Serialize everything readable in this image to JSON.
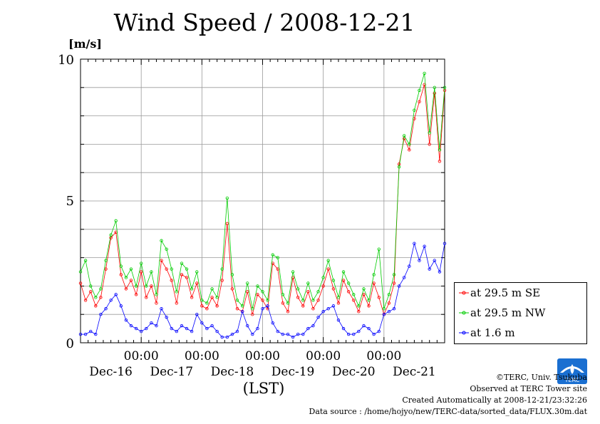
{
  "chart_data": {
    "type": "line",
    "title": "Wind Speed / 2008-12-21",
    "ylabel": "[m/s]",
    "xlabel": "(LST)",
    "ylim": [
      0,
      10
    ],
    "yticks": [
      "0",
      "5",
      "10"
    ],
    "xlim": [
      -1.0,
      5.0
    ],
    "xtick_times": [
      "00:00",
      "00:00",
      "00:00",
      "00:00",
      "00:00"
    ],
    "xtick_dates": [
      "Dec-16",
      "Dec-17",
      "Dec-18",
      "Dec-19",
      "Dec-20",
      "Dec-21"
    ],
    "grid": true,
    "legend_position": "bottom-right outside plot",
    "series": [
      {
        "name": "at 29.5 m SE",
        "color": "#ff0000",
        "x": [
          -1.0,
          -0.917,
          -0.833,
          -0.75,
          -0.667,
          -0.583,
          -0.5,
          -0.417,
          -0.333,
          -0.25,
          -0.167,
          -0.083,
          0.0,
          0.083,
          0.167,
          0.25,
          0.333,
          0.417,
          0.5,
          0.583,
          0.667,
          0.75,
          0.833,
          0.917,
          1.0,
          1.083,
          1.167,
          1.25,
          1.333,
          1.417,
          1.5,
          1.583,
          1.667,
          1.75,
          1.833,
          1.917,
          2.0,
          2.083,
          2.167,
          2.25,
          2.333,
          2.417,
          2.5,
          2.583,
          2.667,
          2.75,
          2.833,
          2.917,
          3.0,
          3.083,
          3.167,
          3.25,
          3.333,
          3.417,
          3.5,
          3.583,
          3.667,
          3.75,
          3.833,
          3.917,
          4.0,
          4.083,
          4.167,
          4.25,
          4.333,
          4.417,
          4.5,
          4.583,
          4.667,
          4.75,
          4.833,
          4.917,
          5.0
        ],
        "values": [
          2.1,
          1.5,
          1.8,
          1.3,
          1.6,
          2.6,
          3.7,
          3.9,
          2.4,
          1.9,
          2.2,
          1.7,
          2.5,
          1.6,
          2.0,
          1.4,
          2.9,
          2.6,
          2.2,
          1.4,
          2.4,
          2.3,
          1.6,
          2.1,
          1.3,
          1.2,
          1.6,
          1.3,
          2.2,
          4.2,
          1.9,
          1.2,
          1.1,
          1.8,
          1.0,
          1.7,
          1.5,
          1.2,
          2.8,
          2.6,
          1.4,
          1.1,
          2.3,
          1.6,
          1.3,
          1.8,
          1.2,
          1.5,
          2.0,
          2.6,
          1.9,
          1.4,
          2.2,
          1.8,
          1.5,
          1.1,
          1.7,
          1.3,
          2.1,
          1.6,
          1.0,
          1.4,
          2.1,
          6.3,
          7.2,
          6.8,
          7.9,
          8.5,
          9.1,
          7.0,
          8.8,
          6.4,
          8.9
        ]
      },
      {
        "name": "at 29.5 m NW",
        "color": "#00cc00",
        "x": [
          -1.0,
          -0.917,
          -0.833,
          -0.75,
          -0.667,
          -0.583,
          -0.5,
          -0.417,
          -0.333,
          -0.25,
          -0.167,
          -0.083,
          0.0,
          0.083,
          0.167,
          0.25,
          0.333,
          0.417,
          0.5,
          0.583,
          0.667,
          0.75,
          0.833,
          0.917,
          1.0,
          1.083,
          1.167,
          1.25,
          1.333,
          1.417,
          1.5,
          1.583,
          1.667,
          1.75,
          1.833,
          1.917,
          2.0,
          2.083,
          2.167,
          2.25,
          2.333,
          2.417,
          2.5,
          2.583,
          2.667,
          2.75,
          2.833,
          2.917,
          3.0,
          3.083,
          3.167,
          3.25,
          3.333,
          3.417,
          3.5,
          3.583,
          3.667,
          3.75,
          3.833,
          3.917,
          4.0,
          4.083,
          4.167,
          4.25,
          4.333,
          4.417,
          4.5,
          4.583,
          4.667,
          4.75,
          4.833,
          4.917,
          5.0
        ],
        "values": [
          2.5,
          2.9,
          2.0,
          1.6,
          1.9,
          2.9,
          3.8,
          4.3,
          2.7,
          2.3,
          2.6,
          2.0,
          2.8,
          2.0,
          2.5,
          1.7,
          3.6,
          3.3,
          2.6,
          1.8,
          2.8,
          2.6,
          1.9,
          2.5,
          1.5,
          1.4,
          1.9,
          1.6,
          2.6,
          5.1,
          2.4,
          1.5,
          1.3,
          2.1,
          1.2,
          2.0,
          1.8,
          1.5,
          3.1,
          3.0,
          1.7,
          1.4,
          2.5,
          1.9,
          1.5,
          2.1,
          1.5,
          1.8,
          2.3,
          2.9,
          2.2,
          1.6,
          2.5,
          2.1,
          1.7,
          1.3,
          1.9,
          1.5,
          2.4,
          3.3,
          1.2,
          1.7,
          2.4,
          6.2,
          7.3,
          7.0,
          8.2,
          8.9,
          9.5,
          7.4,
          9.0,
          6.8,
          9.0
        ]
      },
      {
        "name": "at 1.6 m",
        "color": "#0000ff",
        "x": [
          -1.0,
          -0.917,
          -0.833,
          -0.75,
          -0.667,
          -0.583,
          -0.5,
          -0.417,
          -0.333,
          -0.25,
          -0.167,
          -0.083,
          0.0,
          0.083,
          0.167,
          0.25,
          0.333,
          0.417,
          0.5,
          0.583,
          0.667,
          0.75,
          0.833,
          0.917,
          1.0,
          1.083,
          1.167,
          1.25,
          1.333,
          1.417,
          1.5,
          1.583,
          1.667,
          1.75,
          1.833,
          1.917,
          2.0,
          2.083,
          2.167,
          2.25,
          2.333,
          2.417,
          2.5,
          2.583,
          2.667,
          2.75,
          2.833,
          2.917,
          3.0,
          3.083,
          3.167,
          3.25,
          3.333,
          3.417,
          3.5,
          3.583,
          3.667,
          3.75,
          3.833,
          3.917,
          4.0,
          4.083,
          4.167,
          4.25,
          4.333,
          4.417,
          4.5,
          4.583,
          4.667,
          4.75,
          4.833,
          4.917,
          5.0
        ],
        "values": [
          0.3,
          0.3,
          0.4,
          0.3,
          1.0,
          1.2,
          1.5,
          1.7,
          1.3,
          0.8,
          0.6,
          0.5,
          0.4,
          0.5,
          0.7,
          0.6,
          1.2,
          0.9,
          0.5,
          0.4,
          0.6,
          0.5,
          0.4,
          1.0,
          0.7,
          0.5,
          0.6,
          0.4,
          0.2,
          0.2,
          0.3,
          0.4,
          1.1,
          0.6,
          0.3,
          0.5,
          1.2,
          1.3,
          0.7,
          0.4,
          0.3,
          0.3,
          0.2,
          0.3,
          0.3,
          0.5,
          0.6,
          0.9,
          1.1,
          1.2,
          1.3,
          0.8,
          0.5,
          0.3,
          0.3,
          0.4,
          0.6,
          0.5,
          0.3,
          0.4,
          1.0,
          1.1,
          1.2,
          2.0,
          2.3,
          2.7,
          3.5,
          2.9,
          3.4,
          2.6,
          2.9,
          2.5,
          3.5
        ]
      }
    ]
  },
  "footer": {
    "copyright": "©TERC, Univ. Tsukuba",
    "site": "Observed at TERC Tower site",
    "created": "Created Automatically at 2008-12-21/23:32:26",
    "source": "Data source : /home/hojyo/new/TERC-data/sorted_data/FLUX.30m.dat"
  },
  "logo": {
    "text": "TERC",
    "color": "#1a6fd1"
  }
}
